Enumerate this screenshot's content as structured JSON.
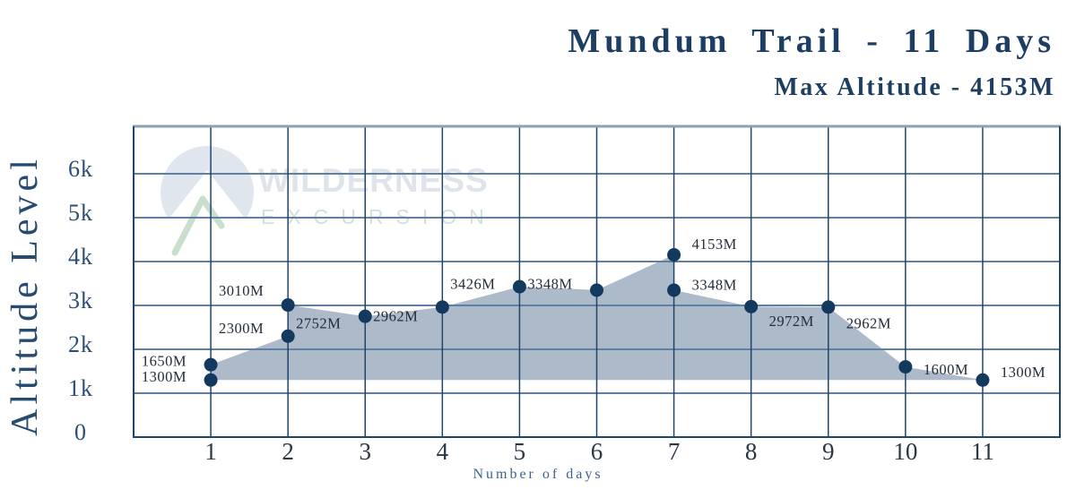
{
  "header": {
    "title": "Mundum Trail - 11 Days",
    "subtitle": "Max Altitude - 4153M"
  },
  "watermark": {
    "name": "WILDERNESS",
    "tagline": "EXCURSION"
  },
  "chart_data": {
    "type": "area",
    "title": "Mundum Trail - 11 Days",
    "subtitle": "Max Altitude - 4153M",
    "xlabel": "Number of days",
    "ylabel": "Altitude Level",
    "unit": "M",
    "max_altitude": 4153,
    "baseline_altitude": 1300,
    "grid": true,
    "legend": false,
    "xlim": [
      0,
      12
    ],
    "ylim": [
      0,
      7000
    ],
    "x_ticks": [
      "1",
      "2",
      "3",
      "4",
      "5",
      "6",
      "7",
      "8",
      "9",
      "10",
      "11"
    ],
    "y_ticks": [
      {
        "label": "0",
        "value": 0
      },
      {
        "label": "1k",
        "value": 1000
      },
      {
        "label": "2k",
        "value": 2000
      },
      {
        "label": "3k",
        "value": 3000
      },
      {
        "label": "4k",
        "value": 4000
      },
      {
        "label": "5k",
        "value": 5000
      },
      {
        "label": "6k",
        "value": 6000
      }
    ],
    "points": [
      {
        "day": 1,
        "altitude": 1650,
        "label": "1650M",
        "side": "left",
        "dy": -4
      },
      {
        "day": 1,
        "altitude": 1300,
        "label": "1300M",
        "side": "left",
        "dy": -4
      },
      {
        "day": 2,
        "altitude": 3010,
        "label": "3010M",
        "side": "left",
        "dy": -16
      },
      {
        "day": 2,
        "altitude": 2300,
        "label": "2300M",
        "side": "left",
        "dy": -9
      },
      {
        "day": 3,
        "altitude": 2752,
        "label": "2752M",
        "side": "left",
        "dy": 8
      },
      {
        "day": 4,
        "altitude": 2962,
        "label": "2962M",
        "side": "left",
        "dy": 10
      },
      {
        "day": 5,
        "altitude": 3426,
        "label": "3426M",
        "side": "left",
        "dy": -3
      },
      {
        "day": 6,
        "altitude": 3348,
        "label": "3348M",
        "side": "left",
        "dy": -7
      },
      {
        "day": 7,
        "altitude": 4153,
        "label": "4153M",
        "side": "right",
        "dy": -12
      },
      {
        "day": 7,
        "altitude": 3348,
        "label": "3348M",
        "side": "right",
        "dy": -6
      },
      {
        "day": 8,
        "altitude": 2972,
        "label": "2972M",
        "side": "right",
        "dy": 16
      },
      {
        "day": 9,
        "altitude": 2962,
        "label": "2962M",
        "side": "right",
        "dy": 18
      },
      {
        "day": 10,
        "altitude": 1600,
        "label": "1600M",
        "side": "right",
        "dy": 3
      },
      {
        "day": 11,
        "altitude": 1300,
        "label": "1300M",
        "side": "right",
        "dy": -9
      }
    ],
    "profile": [
      [
        1,
        1300
      ],
      [
        1,
        1650
      ],
      [
        2,
        2300
      ],
      [
        2,
        3010
      ],
      [
        3,
        2752
      ],
      [
        4,
        2962
      ],
      [
        5,
        3426
      ],
      [
        6,
        3348
      ],
      [
        7,
        4153
      ],
      [
        7,
        3348
      ],
      [
        8,
        2972
      ],
      [
        9,
        2962
      ],
      [
        10,
        1600
      ],
      [
        11,
        1300
      ]
    ],
    "colors": {
      "title": "#1d3e63",
      "area": "#a9b6c7",
      "dot": "#14395f",
      "grid_h": "#5f7fa3",
      "grid_v": "#1f456b",
      "frame": "#1f456b",
      "frame_top": "#8ba0b7",
      "point_label": "#232c38",
      "tick_x": "#2a3744",
      "tick_y": "#2e4d74",
      "axis_title_y": "#274a70",
      "axis_title_x": "#3d6191",
      "watermark_text": "#dfe4eb",
      "watermark_tagline": "#cfe2d4",
      "watermark_logo": "#e0e6ed",
      "watermark_accent": "#c9dfcd"
    }
  }
}
